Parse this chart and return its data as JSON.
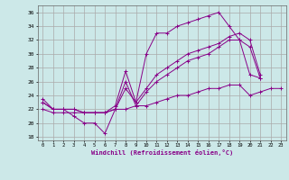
{
  "xlabel": "Windchill (Refroidissement éolien,°C)",
  "bg_color": "#cce8e8",
  "grid_color": "#aaaaaa",
  "line_color": "#880088",
  "x_ticks": [
    0,
    1,
    2,
    3,
    4,
    5,
    6,
    7,
    8,
    9,
    10,
    11,
    12,
    13,
    14,
    15,
    16,
    17,
    18,
    19,
    20,
    21,
    22,
    23
  ],
  "y_ticks": [
    18,
    20,
    22,
    24,
    26,
    28,
    30,
    32,
    34,
    36
  ],
  "xlim": [
    -0.5,
    23.5
  ],
  "ylim": [
    17.5,
    37
  ],
  "series": [
    {
      "x": [
        0,
        1,
        2,
        3,
        4,
        5,
        6,
        7,
        8,
        9,
        10,
        11,
        12,
        13,
        14,
        15,
        16,
        17,
        18,
        19,
        20,
        21
      ],
      "y": [
        23.5,
        22,
        22,
        21,
        20,
        20,
        18.5,
        22,
        25,
        23,
        30,
        33,
        33,
        34,
        34.5,
        35,
        35.5,
        36,
        34,
        32,
        27,
        26.5
      ]
    },
    {
      "x": [
        0,
        1,
        2,
        3,
        4,
        5,
        6,
        7,
        8,
        9,
        10,
        11,
        12,
        13,
        14,
        15,
        16,
        17,
        18,
        19,
        20,
        21
      ],
      "y": [
        23,
        22,
        22,
        22,
        21.5,
        21.5,
        21.5,
        22.5,
        27.5,
        23,
        25,
        27,
        28,
        29,
        30,
        30.5,
        31,
        31.5,
        32.5,
        33,
        32,
        27
      ]
    },
    {
      "x": [
        0,
        1,
        2,
        3,
        4,
        5,
        6,
        7,
        8,
        9,
        10,
        11,
        12,
        13,
        14,
        15,
        16,
        17,
        18,
        19,
        20,
        21
      ],
      "y": [
        23,
        22,
        22,
        22,
        21.5,
        21.5,
        21.5,
        22,
        26,
        22.5,
        24.5,
        26,
        27,
        28,
        29,
        29.5,
        30,
        31,
        32,
        32,
        31,
        26.5
      ]
    },
    {
      "x": [
        0,
        1,
        2,
        3,
        4,
        5,
        6,
        7,
        8,
        9,
        10,
        11,
        12,
        13,
        14,
        15,
        16,
        17,
        18,
        19,
        20,
        21,
        22,
        23
      ],
      "y": [
        22,
        21.5,
        21.5,
        21.5,
        21.5,
        21.5,
        21.5,
        22,
        22,
        22.5,
        22.5,
        23,
        23.5,
        24,
        24,
        24.5,
        25,
        25,
        25.5,
        25.5,
        24,
        24.5,
        25,
        25
      ]
    }
  ]
}
